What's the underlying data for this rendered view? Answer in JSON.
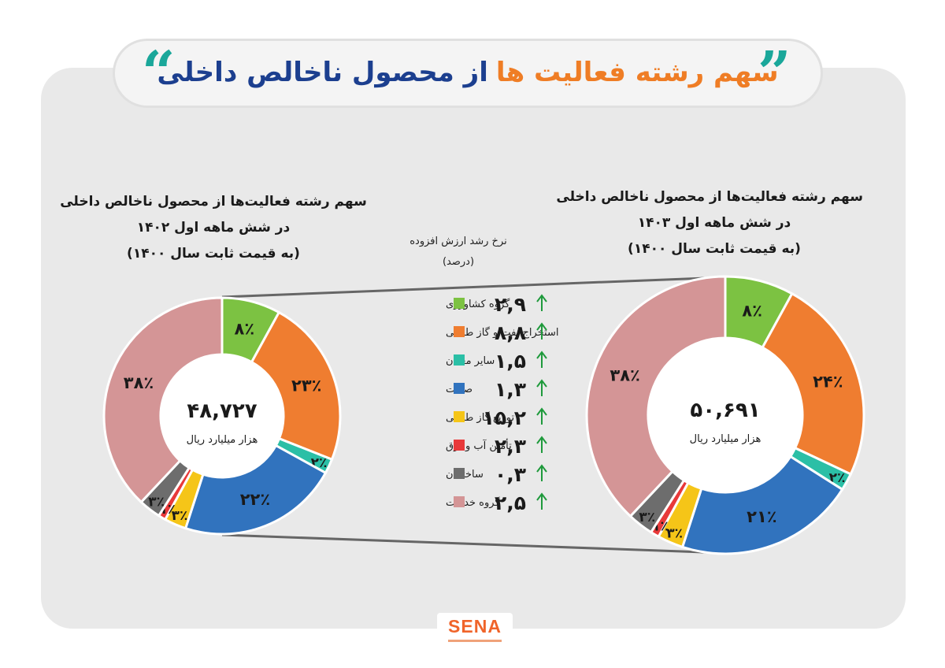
{
  "page": {
    "title_part1": "سهم رشته فعالیت ها",
    "title_part2": "از محصول ناخالص داخلی",
    "quote_left": "“",
    "quote_right": "”",
    "logo": "SENA"
  },
  "right_chart": {
    "caption_line1": "سهم رشته فعالیت‌ها از محصول ناخالص داخلی",
    "caption_line2": "در شش ماهه اول ۱۴۰۳",
    "caption_line3": "(به قیمت ثابت سال ۱۴۰۰)",
    "center_value": "۵۰,۶۹۱",
    "center_unit": "هزار میلیارد ریال"
  },
  "left_chart": {
    "caption_line1": "سهم رشته فعالیت‌ها از محصول ناخالص داخلی",
    "caption_line2": "در شش ماهه اول ۱۴۰۲",
    "caption_line3": "(به قیمت ثابت سال ۱۴۰۰)",
    "center_value": "۴۸,۷۲۷",
    "center_unit": "هزار میلیارد ریال"
  },
  "growth": {
    "header_line1": "نرخ رشد ارزش افزوده",
    "header_line2": "(درصد)"
  },
  "chart_data": [
    {
      "type": "pie",
      "title": "سهم رشته فعالیت‌ها از محصول ناخالص داخلی در شش ماهه اول ۱۴۰۳ (به قیمت ثابت سال ۱۴۰۰)",
      "total": 50691,
      "total_label": "۵۰,۶۹۱",
      "unit": "هزار میلیارد ریال",
      "categories": [
        "گروه کشاورزی",
        "استخراج نفت و گاز طبیعی",
        "سایر معادن",
        "صنعت",
        "توزیع گاز طبیعی",
        "تأمین آب و برق",
        "ساختمان",
        "گروه خدمات"
      ],
      "values": [
        8,
        24,
        2,
        21,
        3,
        1,
        3,
        38
      ],
      "labels": [
        "۸٪",
        "۲۴٪",
        "۲٪",
        "۲۱٪",
        "۳٪",
        "۱٪",
        "۳٪",
        "۳۸٪"
      ],
      "colors": [
        "#7cc242",
        "#ef7d30",
        "#2bbfa6",
        "#3173be",
        "#f5c518",
        "#e8393a",
        "#6d6d6d",
        "#d49596"
      ]
    },
    {
      "type": "pie",
      "title": "سهم رشته فعالیت‌ها از محصول ناخالص داخلی در شش ماهه اول ۱۴۰۲ (به قیمت ثابت سال ۱۴۰۰)",
      "total": 48727,
      "total_label": "۴۸,۷۲۷",
      "unit": "هزار میلیارد ریال",
      "categories": [
        "گروه کشاورزی",
        "استخراج نفت و گاز طبیعی",
        "سایر معادن",
        "صنعت",
        "توزیع گاز طبیعی",
        "تأمین آب و برق",
        "ساختمان",
        "گروه خدمات"
      ],
      "values": [
        8,
        23,
        2,
        22,
        3,
        1,
        3,
        38
      ],
      "labels": [
        "۸٪",
        "۲۳٪",
        "۲٪",
        "۲۲٪",
        "۳٪",
        "۱٪",
        "۳٪",
        "۳۸٪"
      ],
      "colors": [
        "#7cc242",
        "#ef7d30",
        "#2bbfa6",
        "#3173be",
        "#f5c518",
        "#e8393a",
        "#6d6d6d",
        "#d49596"
      ]
    },
    {
      "type": "table",
      "title": "نرخ رشد ارزش افزوده (درصد)",
      "categories": [
        "گروه کشاورزی",
        "استخراج نفت و گاز طبیعی",
        "سایر معادن",
        "صنعت",
        "توزیع گاز طبیعی",
        "تأمین آب و برق",
        "ساختمان",
        "گروه خدمات"
      ],
      "values": [
        2.9,
        8.8,
        1.5,
        1.3,
        15.2,
        2.3,
        0.3,
        2.5
      ],
      "value_labels": [
        "۲,۹",
        "۸,۸",
        "۱,۵",
        "۱,۳",
        "۱۵,۲",
        "۲,۳",
        "۰,۳",
        "۲,۵"
      ],
      "direction": "up",
      "colors": [
        "#7cc242",
        "#ef7d30",
        "#2bbfa6",
        "#3173be",
        "#f5c518",
        "#e8393a",
        "#6d6d6d",
        "#d49596"
      ],
      "arrow_color": "#1f9a3c"
    }
  ]
}
